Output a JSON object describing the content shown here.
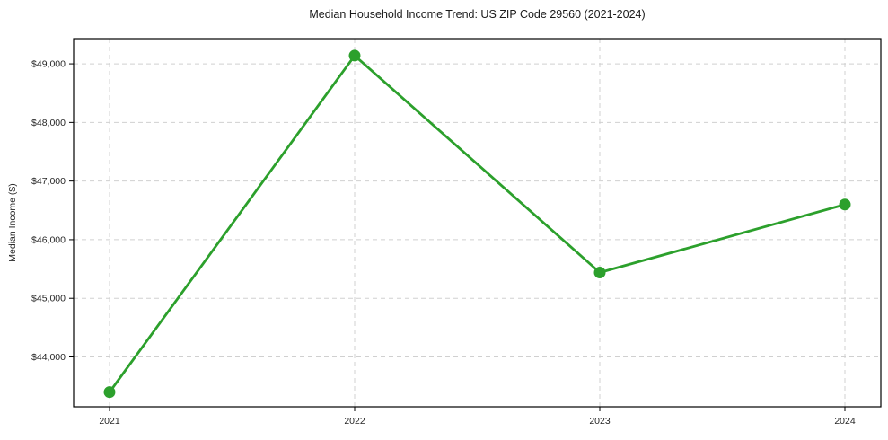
{
  "chart_data": {
    "type": "line",
    "title": "Median Household Income Trend: US ZIP Code 29560 (2021-2024)",
    "xlabel": "",
    "ylabel": "Median Income ($)",
    "x": [
      2021,
      2022,
      2023,
      2024
    ],
    "x_tick_labels": [
      "2021",
      "2022",
      "2023",
      "2024"
    ],
    "series": [
      {
        "name": "Median Household Income",
        "values": [
          43400,
          49140,
          45440,
          46600
        ],
        "color": "#2ca02c"
      }
    ],
    "y_ticks": [
      44000,
      45000,
      46000,
      47000,
      48000,
      49000
    ],
    "y_tick_labels": [
      "$44,000",
      "$45,000",
      "$46,000",
      "$47,000",
      "$48,000",
      "$49,000"
    ],
    "ylim": [
      43150,
      49430
    ],
    "grid": "dashed-both-axes",
    "legend": "none",
    "marker": "circle",
    "background_color": "#ffffff"
  }
}
